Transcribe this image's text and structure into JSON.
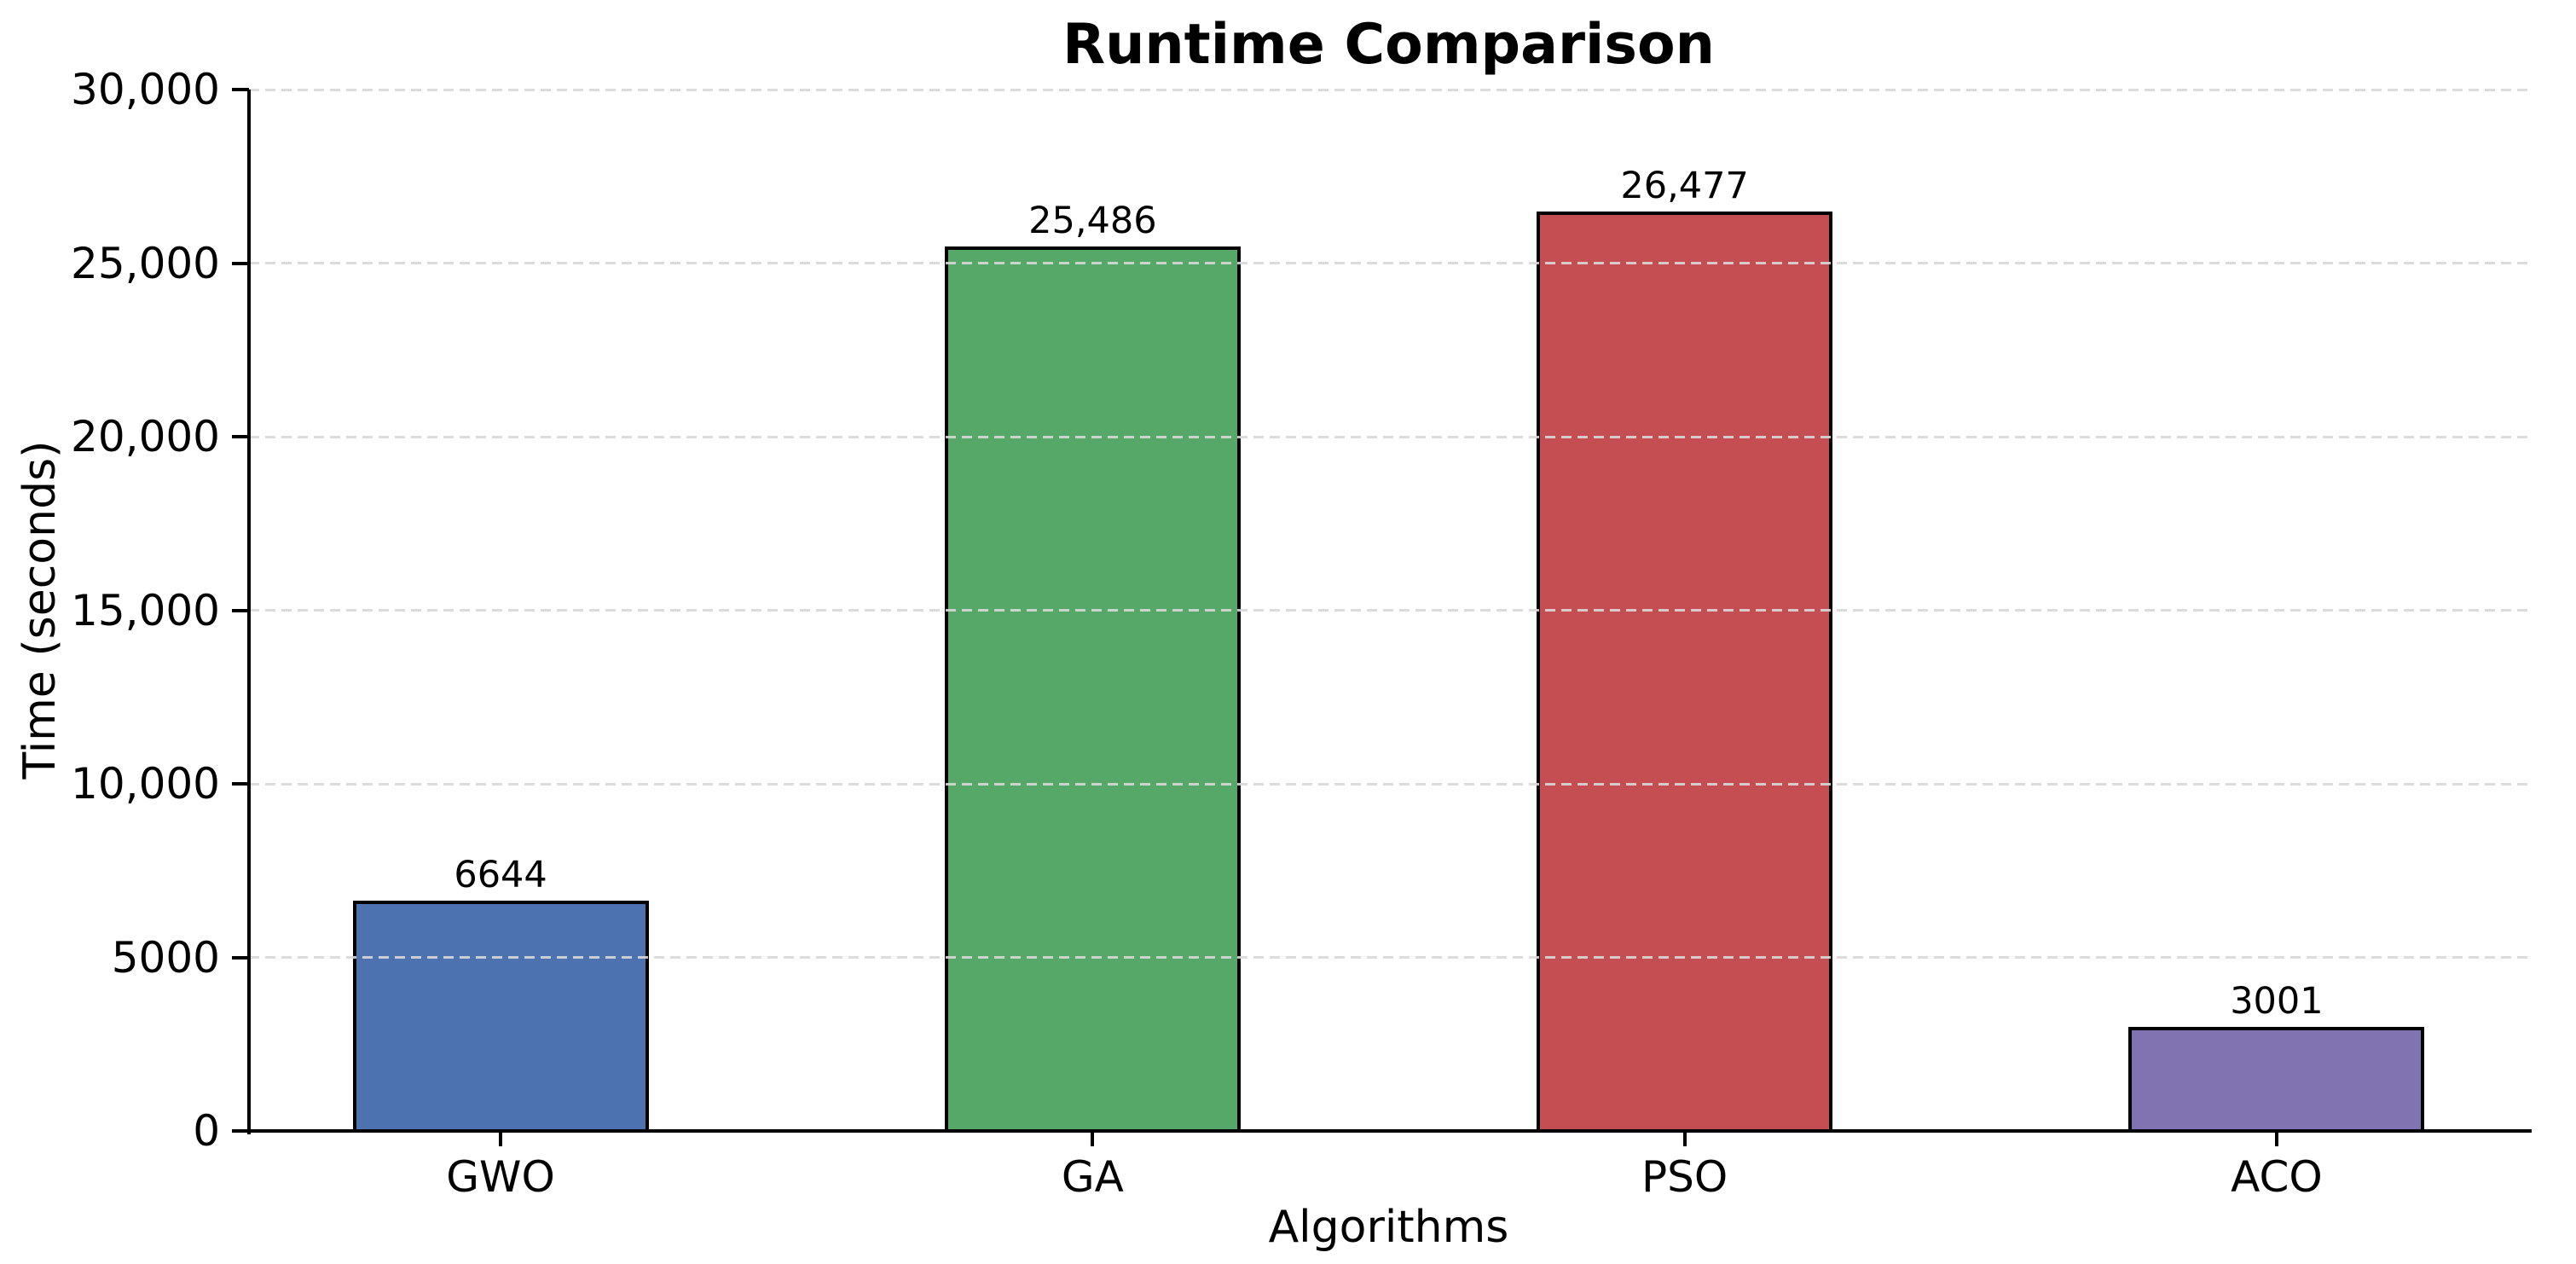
{
  "chart_data": {
    "type": "bar",
    "title": "Runtime Comparison",
    "xlabel": "Algorithms",
    "ylabel": "Time (seconds)",
    "categories": [
      "GWO",
      "GA",
      "PSO",
      "ACO"
    ],
    "values": [
      6644,
      25486,
      26477,
      3001
    ],
    "value_labels": [
      "6644",
      "25,486",
      "26,477",
      "3001"
    ],
    "bar_colors": [
      "#4C72B0",
      "#55A868",
      "#C44E52",
      "#8172B2"
    ],
    "bar_edge_color": "#000000",
    "ylim": [
      0,
      30000
    ],
    "ytick_values": [
      0,
      5000,
      10000,
      15000,
      20000,
      25000,
      30000
    ],
    "ytick_labels": [
      "0",
      "5000",
      "10,000",
      "15,000",
      "20,000",
      "25,000",
      "30,000"
    ],
    "grid": "horizontal-dashed",
    "grid_color": "#d8d8d8",
    "background_color": "#ffffff",
    "legend_position": "none"
  }
}
